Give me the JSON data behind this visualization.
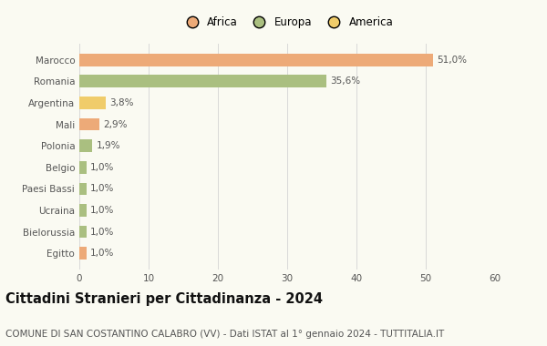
{
  "categories": [
    "Marocco",
    "Romania",
    "Argentina",
    "Mali",
    "Polonia",
    "Belgio",
    "Paesi Bassi",
    "Ucraina",
    "Bielorussia",
    "Egitto"
  ],
  "values": [
    51.0,
    35.6,
    3.8,
    2.9,
    1.9,
    1.0,
    1.0,
    1.0,
    1.0,
    1.0
  ],
  "labels": [
    "51,0%",
    "35,6%",
    "3,8%",
    "2,9%",
    "1,9%",
    "1,0%",
    "1,0%",
    "1,0%",
    "1,0%",
    "1,0%"
  ],
  "colors": [
    "#EDAA78",
    "#AABF80",
    "#F0CC6A",
    "#EDAA78",
    "#AABF80",
    "#AABF80",
    "#AABF80",
    "#AABF80",
    "#AABF80",
    "#EDAA78"
  ],
  "legend_labels": [
    "Africa",
    "Europa",
    "America"
  ],
  "legend_colors": [
    "#EDAA78",
    "#AABF80",
    "#F0CC6A"
  ],
  "title": "Cittadini Stranieri per Cittadinanza - 2024",
  "subtitle": "COMUNE DI SAN COSTANTINO CALABRO (VV) - Dati ISTAT al 1° gennaio 2024 - TUTTITALIA.IT",
  "xlim": [
    0,
    60
  ],
  "xticks": [
    0,
    10,
    20,
    30,
    40,
    50,
    60
  ],
  "background_color": "#FAFAF2",
  "grid_color": "#D8D8D8",
  "bar_height": 0.58,
  "label_fontsize": 7.5,
  "tick_fontsize": 7.5,
  "title_fontsize": 10.5,
  "subtitle_fontsize": 7.5
}
